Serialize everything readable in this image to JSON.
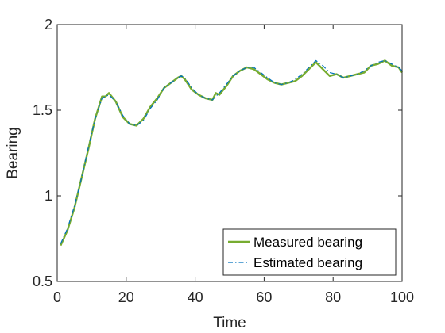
{
  "chart_data": {
    "type": "line",
    "title": "",
    "xlabel": "Time",
    "ylabel": "Bearing",
    "xlim": [
      0,
      100
    ],
    "ylim": [
      0.5,
      2
    ],
    "xticks": [
      0,
      20,
      40,
      60,
      80,
      100
    ],
    "yticks": [
      0.5,
      1,
      1.5,
      2
    ],
    "xtick_labels": [
      "0",
      "20",
      "40",
      "60",
      "80",
      "100"
    ],
    "ytick_labels": [
      "0.5",
      "1",
      "1.5",
      "2"
    ],
    "grid": false,
    "legend_position": "bottom-right",
    "series": [
      {
        "name": "Measured bearing",
        "color": "#77AC30",
        "style": "solid",
        "x": [
          1,
          3,
          5,
          7,
          9,
          11,
          13,
          14,
          15,
          17,
          19,
          21,
          23,
          25,
          27,
          29,
          31,
          33,
          35,
          36,
          37,
          39,
          41,
          43,
          45,
          46,
          47,
          49,
          51,
          53,
          55,
          57,
          59,
          61,
          63,
          65,
          67,
          69,
          71,
          73,
          75,
          77,
          79,
          81,
          83,
          85,
          87,
          89,
          91,
          93,
          95,
          97,
          99,
          100
        ],
        "y": [
          0.71,
          0.8,
          0.93,
          1.1,
          1.27,
          1.45,
          1.58,
          1.58,
          1.6,
          1.55,
          1.46,
          1.42,
          1.41,
          1.45,
          1.52,
          1.57,
          1.63,
          1.66,
          1.69,
          1.7,
          1.68,
          1.62,
          1.59,
          1.57,
          1.56,
          1.6,
          1.59,
          1.64,
          1.7,
          1.73,
          1.75,
          1.74,
          1.71,
          1.68,
          1.66,
          1.65,
          1.66,
          1.67,
          1.7,
          1.74,
          1.78,
          1.74,
          1.7,
          1.71,
          1.69,
          1.7,
          1.71,
          1.72,
          1.76,
          1.77,
          1.79,
          1.76,
          1.75,
          1.72
        ]
      },
      {
        "name": "Estimated bearing",
        "color": "#0072BD",
        "style": "dashdot",
        "x": [
          1,
          3,
          5,
          7,
          9,
          11,
          13,
          14,
          15,
          17,
          19,
          21,
          23,
          25,
          27,
          29,
          31,
          33,
          35,
          36,
          37,
          39,
          41,
          43,
          45,
          46,
          47,
          49,
          51,
          53,
          55,
          57,
          59,
          61,
          63,
          65,
          67,
          69,
          71,
          73,
          75,
          77,
          79,
          81,
          83,
          85,
          87,
          89,
          91,
          93,
          95,
          97,
          99,
          100
        ],
        "y": [
          0.72,
          0.81,
          0.94,
          1.1,
          1.28,
          1.45,
          1.57,
          1.58,
          1.59,
          1.55,
          1.47,
          1.42,
          1.41,
          1.44,
          1.51,
          1.56,
          1.63,
          1.66,
          1.69,
          1.7,
          1.69,
          1.63,
          1.59,
          1.57,
          1.56,
          1.58,
          1.6,
          1.65,
          1.7,
          1.73,
          1.75,
          1.75,
          1.72,
          1.69,
          1.66,
          1.65,
          1.66,
          1.68,
          1.71,
          1.75,
          1.79,
          1.76,
          1.72,
          1.71,
          1.69,
          1.7,
          1.71,
          1.73,
          1.76,
          1.78,
          1.79,
          1.77,
          1.75,
          1.73
        ]
      }
    ]
  }
}
